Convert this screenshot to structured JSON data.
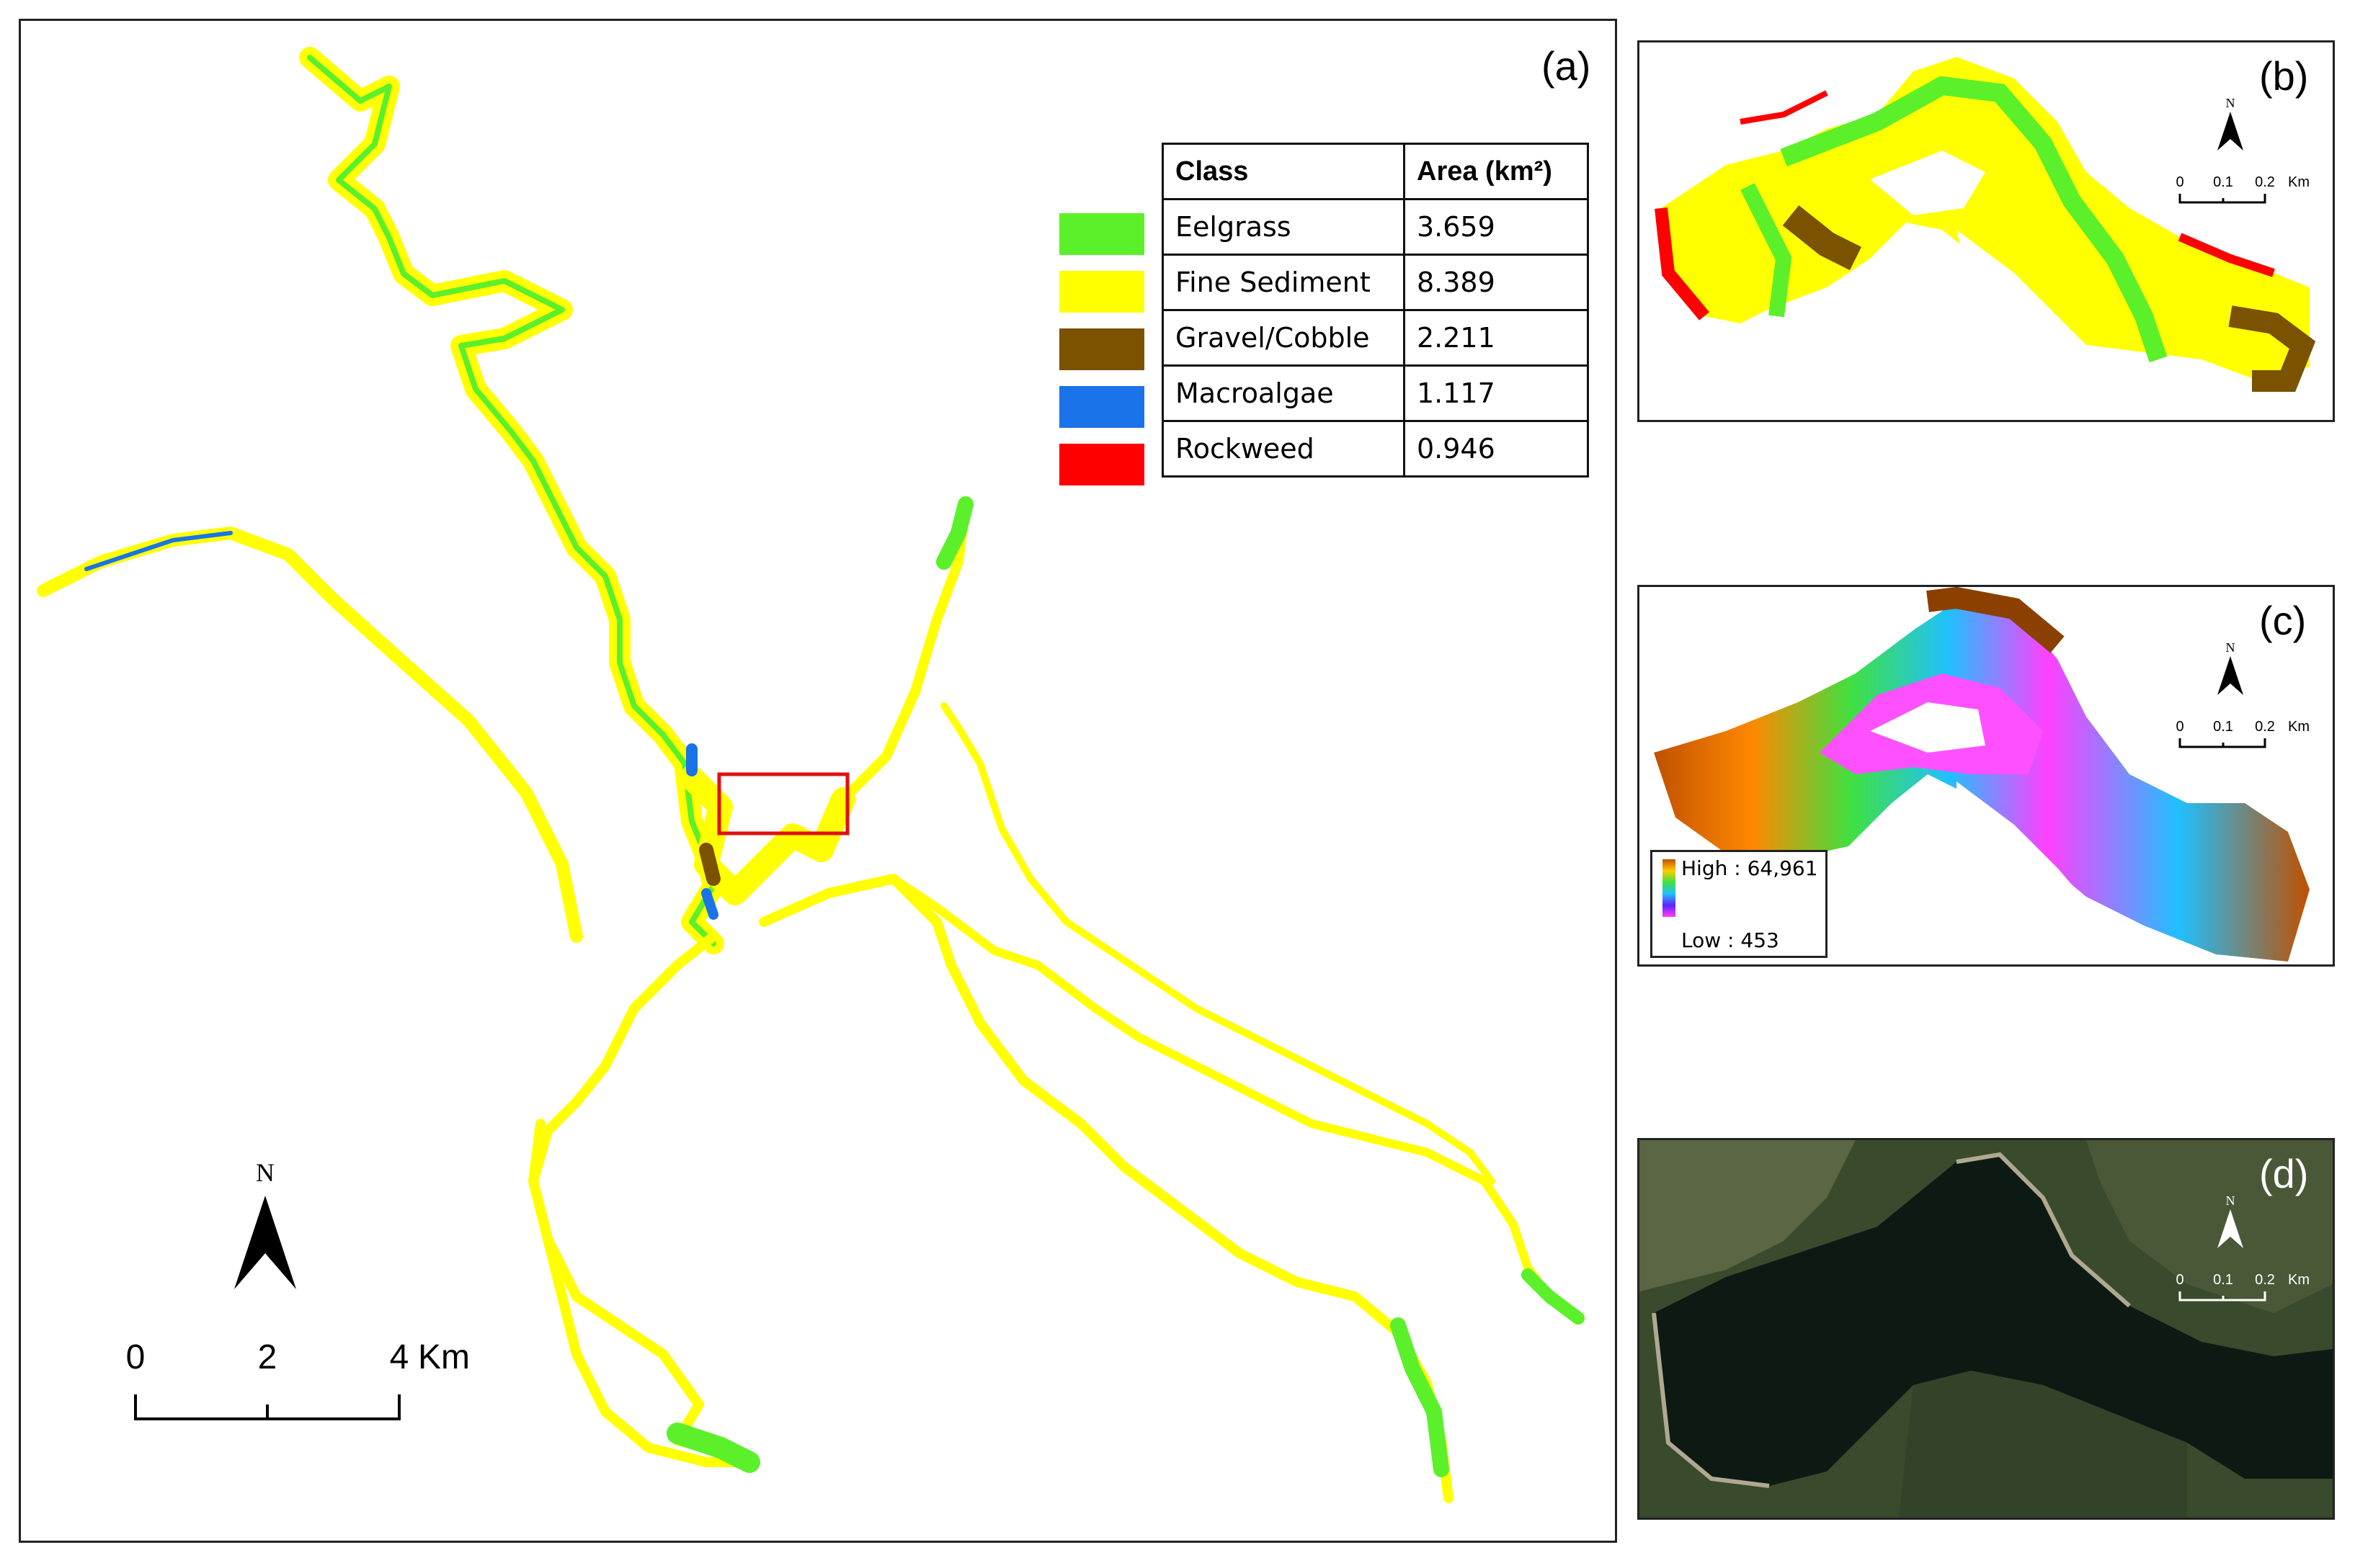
{
  "panels": {
    "a": {
      "label": "(a)"
    },
    "b": {
      "label": "(b)"
    },
    "c": {
      "label": "(c)"
    },
    "d": {
      "label": "(d)"
    }
  },
  "legend": {
    "header_class": "Class",
    "header_area": "Area (km²)",
    "rows": [
      {
        "class": "Eelgrass",
        "area": "3.659",
        "color": "#5cf02a"
      },
      {
        "class": "Fine Sediment",
        "area": "8.389",
        "color": "#ffff00"
      },
      {
        "class": "Gravel/Cobble",
        "area": "2.211",
        "color": "#7a5200"
      },
      {
        "class": "Macroalgae",
        "area": "1.117",
        "color": "#1a73e8"
      },
      {
        "class": "Rockweed",
        "area": "0.946",
        "color": "#ff0000"
      }
    ]
  },
  "main_map": {
    "north": "N",
    "scale": {
      "ticks": [
        "0",
        "2",
        "4"
      ],
      "unit": "Km"
    }
  },
  "inset_scale": {
    "north": "N",
    "ticks": [
      "0",
      "0.1",
      "0.2"
    ],
    "unit": "Km"
  },
  "colorbar": {
    "high": "High : 64,961",
    "low": "Low : 453"
  },
  "colors": {
    "highlight_box": "#e01010",
    "satellite_water": "#0d1a14",
    "satellite_land": "#3a4a2c"
  }
}
